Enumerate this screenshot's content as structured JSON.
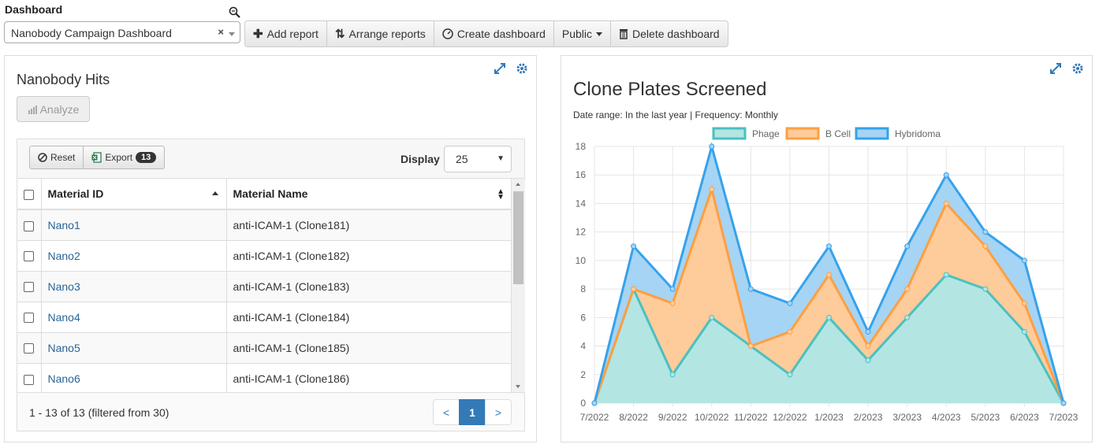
{
  "dashboard": {
    "label": "Dashboard",
    "selected": "Nanobody Campaign Dashboard",
    "clear": "×"
  },
  "toolbar": {
    "add_report": "Add report",
    "arrange_reports": "Arrange reports",
    "create_dashboard": "Create dashboard",
    "visibility": "Public",
    "delete_dashboard": "Delete dashboard"
  },
  "hits_panel": {
    "title": "Nanobody Hits",
    "analyze": "Analyze",
    "reset": "Reset",
    "export": "Export",
    "export_count": "13",
    "display_label": "Display",
    "display_value": "25",
    "columns": [
      "Material ID",
      "Material Name"
    ],
    "rows": [
      {
        "id": "Nano1",
        "name": "anti-ICAM-1 (Clone181)"
      },
      {
        "id": "Nano2",
        "name": "anti-ICAM-1 (Clone182)"
      },
      {
        "id": "Nano3",
        "name": "anti-ICAM-1 (Clone183)"
      },
      {
        "id": "Nano4",
        "name": "anti-ICAM-1 (Clone184)"
      },
      {
        "id": "Nano5",
        "name": "anti-ICAM-1 (Clone185)"
      },
      {
        "id": "Nano6",
        "name": "anti-ICAM-1 (Clone186)"
      }
    ],
    "footer": "1 - 13 of 13 (filtered from 30)",
    "pager": {
      "prev": "<",
      "current": "1",
      "next": ">"
    }
  },
  "chart_panel": {
    "title": "Clone Plates Screened",
    "subtitle": "Date range: In the last year | Frequency: Monthly"
  },
  "colors": {
    "phage_line": "#4bc0c0",
    "phage_fill": "#b3e5e3",
    "bcell_line": "#ff9f40",
    "bcell_fill": "#fecb9a",
    "hybridoma_line": "#36a2eb",
    "hybridoma_fill": "#a6d4f4",
    "link": "#2a6496",
    "accent": "#337ab7"
  },
  "chart_data": {
    "type": "area",
    "stacked": true,
    "title": "Clone Plates Screened",
    "x": [
      "7/2022",
      "8/2022",
      "9/2022",
      "10/2022",
      "11/2022",
      "12/2022",
      "1/2023",
      "2/2023",
      "3/2023",
      "4/2023",
      "5/2023",
      "6/2023",
      "7/2023"
    ],
    "series": [
      {
        "name": "Phage",
        "values": [
          0,
          8,
          2,
          6,
          4,
          2,
          6,
          3,
          6,
          9,
          8,
          5,
          0
        ]
      },
      {
        "name": "B Cell",
        "values": [
          0,
          0,
          5,
          9,
          0,
          3,
          3,
          1,
          2,
          5,
          3,
          2,
          0
        ]
      },
      {
        "name": "Hybridoma",
        "values": [
          0,
          3,
          1,
          3,
          4,
          2,
          2,
          1,
          3,
          2,
          1,
          3,
          0
        ]
      }
    ],
    "yticks": [
      "0",
      "2",
      "4",
      "6",
      "8",
      "10",
      "12",
      "14",
      "16",
      "18"
    ],
    "ylim": [
      0,
      18
    ],
    "grid": true,
    "legend": "top"
  }
}
